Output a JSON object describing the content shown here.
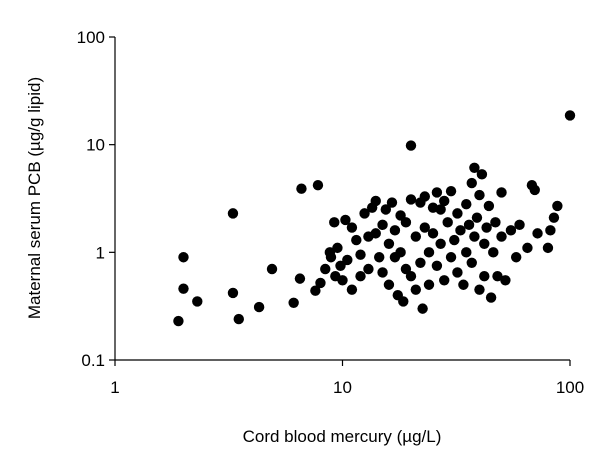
{
  "chart_data": {
    "type": "scatter",
    "x_label": "Cord blood mercury (µg/L)",
    "y_label": "Maternal serum PCB (µg/g lipid)",
    "x_log": true,
    "y_log": true,
    "color": "#000000",
    "xlim": [
      1,
      100
    ],
    "xticks": [
      1,
      10,
      100
    ],
    "ylim": [
      0.1,
      100
    ],
    "yticks": [
      0.1,
      1,
      10,
      100
    ],
    "x": [
      1.9,
      2.0,
      2.0,
      2.3,
      3.3,
      3.3,
      3.5,
      4.3,
      4.9,
      6.1,
      6.5,
      6.6,
      7.8,
      7.6,
      8.0,
      8.4,
      8.8,
      8.9,
      9.2,
      9.3,
      9.5,
      9.8,
      10,
      10.3,
      10.5,
      11,
      11,
      11.5,
      12,
      12,
      12.5,
      13,
      13,
      13.5,
      14,
      14,
      14.5,
      15,
      15,
      15.5,
      16,
      16,
      16.5,
      17,
      17,
      17.5,
      18,
      18,
      18.5,
      19,
      19,
      20,
      20,
      20,
      21,
      21,
      22,
      22,
      22.5,
      23,
      23,
      24,
      24,
      25,
      25,
      26,
      26,
      27,
      27,
      28,
      28,
      29,
      30,
      30,
      31,
      32,
      32,
      33,
      34,
      35,
      35,
      36,
      37,
      37,
      38,
      38,
      39,
      40,
      40,
      41,
      42,
      42,
      43,
      44,
      45,
      46,
      47,
      48,
      50,
      50,
      52,
      55,
      58,
      60,
      65,
      68,
      70,
      72,
      80,
      82,
      85,
      88,
      100
    ],
    "values": [
      0.23,
      0.9,
      0.46,
      0.35,
      2.3,
      0.42,
      0.24,
      0.31,
      0.7,
      0.34,
      0.57,
      3.9,
      4.2,
      0.44,
      0.52,
      0.7,
      1.0,
      0.9,
      1.9,
      0.6,
      1.1,
      0.75,
      0.55,
      2.0,
      0.85,
      1.7,
      0.45,
      1.3,
      0.95,
      0.6,
      2.3,
      1.4,
      0.7,
      2.6,
      1.5,
      3.0,
      0.9,
      1.8,
      0.65,
      2.5,
      1.2,
      0.5,
      2.9,
      1.6,
      0.9,
      0.4,
      2.2,
      1.0,
      0.35,
      1.9,
      0.7,
      9.8,
      3.1,
      0.6,
      1.4,
      0.45,
      2.9,
      0.8,
      0.3,
      1.7,
      3.3,
      0.5,
      1.0,
      2.6,
      1.5,
      3.6,
      0.75,
      1.2,
      2.5,
      0.55,
      3.0,
      1.9,
      0.9,
      3.7,
      1.3,
      0.65,
      2.3,
      1.6,
      0.5,
      1.0,
      2.8,
      1.8,
      4.4,
      0.8,
      6.1,
      1.4,
      2.1,
      0.45,
      3.4,
      5.3,
      1.2,
      0.6,
      1.7,
      2.7,
      0.38,
      1.0,
      1.9,
      0.6,
      1.4,
      3.6,
      0.55,
      1.6,
      0.9,
      1.8,
      1.1,
      4.2,
      3.8,
      1.5,
      1.1,
      1.6,
      2.1,
      2.7,
      18.7
    ]
  }
}
